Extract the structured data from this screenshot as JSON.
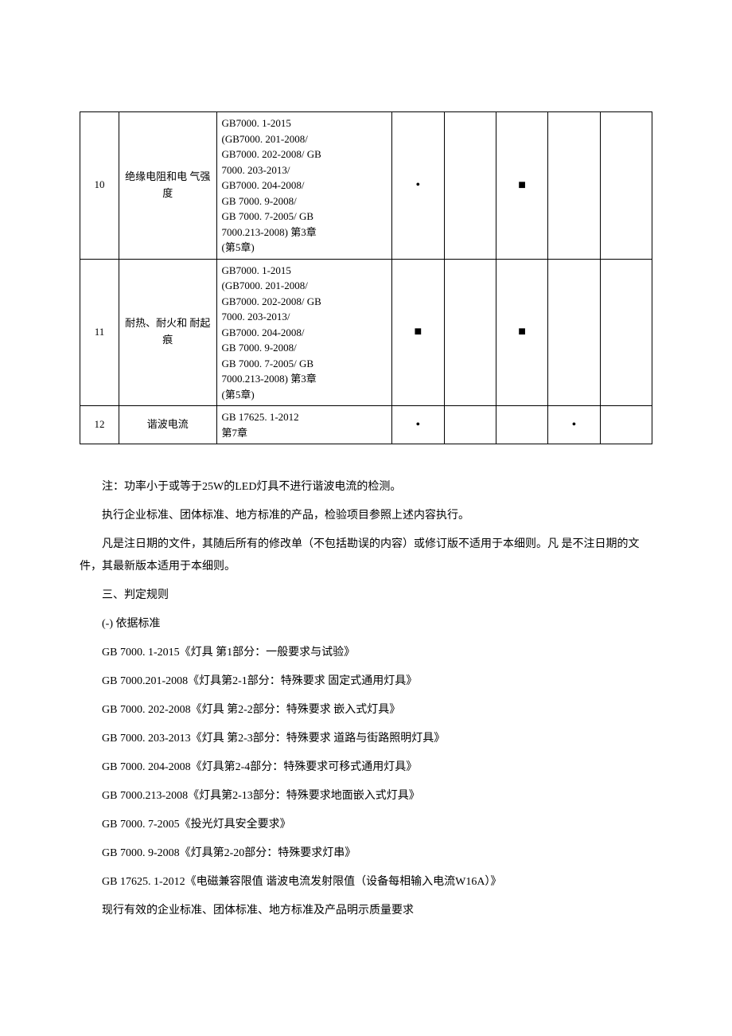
{
  "table": {
    "rows": [
      {
        "num": "10",
        "name": "绝缘电阻和电 气强度",
        "std": "GB7000. 1-2015\n  (GB7000. 201-2008/\nGB7000. 202-2008/ GB\n7000. 203-2013/\nGB7000. 204-2008/\nGB 7000. 9-2008/\nGB 7000. 7-2005/ GB\n7000.213-2008) 第3章\n(第5章)",
        "m1": "•",
        "m2": "",
        "m3": "■",
        "m4": "",
        "m5": ""
      },
      {
        "num": "11",
        "name": "耐热、耐火和 耐起痕",
        "std": "GB7000. 1-2015\n  (GB7000. 201-2008/\nGB7000. 202-2008/ GB\n7000. 203-2013/\nGB7000. 204-2008/\nGB 7000. 9-2008/\nGB 7000. 7-2005/ GB\n7000.213-2008) 第3章\n(第5章)",
        "m1": "■",
        "m2": "",
        "m3": "■",
        "m4": "",
        "m5": ""
      },
      {
        "num": "12",
        "name": "谐波电流",
        "std": "GB 17625. 1-2012\n第7章",
        "m1": "•",
        "m2": "",
        "m3": "",
        "m4": "•",
        "m5": ""
      }
    ]
  },
  "body": {
    "p1": "注：功率小于或等于25W的LED灯具不进行谐波电流的检测。",
    "p2": "执行企业标准、团体标准、地方标准的产品，检验项目参照上述内容执行。",
    "p3": "凡是注日期的文件，其随后所有的修改单（不包括勘误的内容）或修订版不适用于本细则。凡 是不注日期的文件，其最新版本适用于本细则。",
    "p4": "三、判定规则",
    "p5": "(-) 依据标准",
    "p6": "GB 7000. 1-2015《灯具 第1部分：一般要求与试验》",
    "p7": "GB 7000.201-2008《灯具第2-1部分：特殊要求 固定式通用灯具》",
    "p8": "GB 7000. 202-2008《灯具 第2-2部分：特殊要求 嵌入式灯具》",
    "p9": "GB 7000. 203-2013《灯具 第2-3部分：特殊要求 道路与街路照明灯具》",
    "p10": "GB 7000. 204-2008《灯具第2-4部分：特殊要求可移式通用灯具》",
    "p11": "GB 7000.213-2008《灯具第2-13部分：特殊要求地面嵌入式灯具》",
    "p12": "GB 7000. 7-2005《投光灯具安全要求》",
    "p13": "GB 7000. 9-2008《灯具第2-20部分：特殊要求灯串》",
    "p14": "GB 17625. 1-2012《电磁兼容限值 谐波电流发射限值（设备每相输入电流W16A）》",
    "p15": "现行有效的企业标准、团体标准、地方标准及产品明示质量要求"
  }
}
